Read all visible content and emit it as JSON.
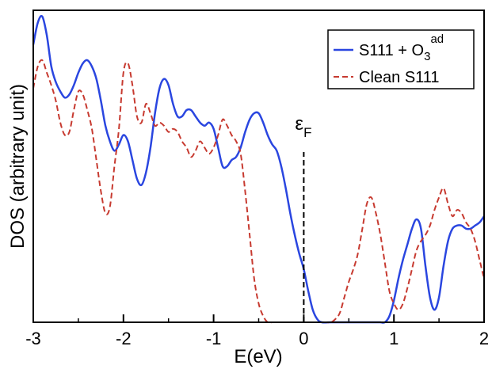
{
  "chart_data": {
    "type": "line",
    "title": "",
    "xlabel": "E(eV)",
    "ylabel": "DOS (arbitrary unit)",
    "xlim": [
      -3,
      2
    ],
    "ylim": [
      0,
      1
    ],
    "xticks": [
      "-3",
      "-2",
      "-1",
      "0",
      "1",
      "2"
    ],
    "grid": false,
    "legend_position": "top-right",
    "annotation": {
      "symbol": "ε",
      "subscript": "F",
      "x": 0
    },
    "series": [
      {
        "name_main": "S111 + O",
        "name_sub": "3",
        "name_sup": "ad",
        "color": "#2a46e0",
        "style": "solid",
        "x": [
          -3.0,
          -2.95,
          -2.9,
          -2.85,
          -2.8,
          -2.75,
          -2.7,
          -2.65,
          -2.6,
          -2.55,
          -2.5,
          -2.45,
          -2.4,
          -2.35,
          -2.3,
          -2.25,
          -2.2,
          -2.15,
          -2.1,
          -2.05,
          -2.0,
          -1.95,
          -1.9,
          -1.85,
          -1.8,
          -1.75,
          -1.7,
          -1.65,
          -1.6,
          -1.55,
          -1.5,
          -1.45,
          -1.4,
          -1.35,
          -1.3,
          -1.25,
          -1.2,
          -1.15,
          -1.1,
          -1.05,
          -1.0,
          -0.95,
          -0.9,
          -0.85,
          -0.8,
          -0.75,
          -0.7,
          -0.65,
          -0.6,
          -0.55,
          -0.5,
          -0.45,
          -0.4,
          -0.35,
          -0.3,
          -0.25,
          -0.2,
          -0.15,
          -0.1,
          -0.05,
          0.0,
          0.05,
          0.1,
          0.15,
          0.2,
          0.3,
          0.4,
          0.5,
          0.6,
          0.7,
          0.8,
          0.85,
          0.9,
          0.95,
          1.0,
          1.05,
          1.1,
          1.15,
          1.2,
          1.25,
          1.3,
          1.35,
          1.4,
          1.45,
          1.5,
          1.55,
          1.6,
          1.65,
          1.7,
          1.75,
          1.8,
          1.85,
          1.9,
          1.95,
          2.0
        ],
        "values": [
          0.89,
          0.96,
          0.98,
          0.92,
          0.82,
          0.77,
          0.74,
          0.72,
          0.73,
          0.76,
          0.8,
          0.83,
          0.84,
          0.82,
          0.78,
          0.71,
          0.63,
          0.58,
          0.55,
          0.57,
          0.6,
          0.58,
          0.52,
          0.46,
          0.44,
          0.48,
          0.56,
          0.67,
          0.75,
          0.78,
          0.76,
          0.7,
          0.66,
          0.66,
          0.68,
          0.68,
          0.66,
          0.64,
          0.63,
          0.64,
          0.62,
          0.56,
          0.5,
          0.5,
          0.52,
          0.53,
          0.56,
          0.61,
          0.65,
          0.67,
          0.67,
          0.64,
          0.6,
          0.57,
          0.55,
          0.5,
          0.43,
          0.35,
          0.28,
          0.22,
          0.17,
          0.1,
          0.04,
          0.01,
          0.0,
          0.0,
          0.0,
          0.0,
          0.0,
          0.0,
          0.0,
          0.0,
          0.0,
          0.02,
          0.07,
          0.14,
          0.2,
          0.25,
          0.3,
          0.33,
          0.3,
          0.18,
          0.08,
          0.04,
          0.08,
          0.18,
          0.26,
          0.3,
          0.31,
          0.31,
          0.3,
          0.3,
          0.31,
          0.32,
          0.34
        ]
      },
      {
        "name": "Clean S111",
        "color": "#c73a30",
        "style": "dashed",
        "x": [
          -3.0,
          -2.95,
          -2.9,
          -2.85,
          -2.8,
          -2.75,
          -2.7,
          -2.65,
          -2.6,
          -2.55,
          -2.5,
          -2.45,
          -2.4,
          -2.35,
          -2.3,
          -2.25,
          -2.2,
          -2.15,
          -2.1,
          -2.05,
          -2.0,
          -1.95,
          -1.9,
          -1.85,
          -1.8,
          -1.75,
          -1.7,
          -1.65,
          -1.6,
          -1.55,
          -1.5,
          -1.45,
          -1.4,
          -1.35,
          -1.3,
          -1.25,
          -1.2,
          -1.15,
          -1.1,
          -1.05,
          -1.0,
          -0.95,
          -0.9,
          -0.85,
          -0.8,
          -0.75,
          -0.7,
          -0.65,
          -0.6,
          -0.55,
          -0.5,
          -0.45,
          -0.4,
          -0.35,
          -0.3,
          -0.25,
          -0.2,
          -0.1,
          0.0,
          0.1,
          0.2,
          0.25,
          0.3,
          0.35,
          0.4,
          0.45,
          0.5,
          0.55,
          0.6,
          0.65,
          0.7,
          0.75,
          0.8,
          0.85,
          0.9,
          0.95,
          1.0,
          1.05,
          1.1,
          1.15,
          1.2,
          1.25,
          1.3,
          1.35,
          1.4,
          1.45,
          1.5,
          1.55,
          1.6,
          1.65,
          1.7,
          1.75,
          1.8,
          1.85,
          1.9,
          1.95,
          2.0
        ],
        "values": [
          0.75,
          0.82,
          0.84,
          0.8,
          0.76,
          0.71,
          0.64,
          0.6,
          0.61,
          0.68,
          0.74,
          0.73,
          0.68,
          0.62,
          0.52,
          0.42,
          0.35,
          0.37,
          0.5,
          0.62,
          0.8,
          0.83,
          0.76,
          0.66,
          0.64,
          0.7,
          0.67,
          0.63,
          0.64,
          0.63,
          0.61,
          0.62,
          0.61,
          0.58,
          0.56,
          0.53,
          0.55,
          0.58,
          0.56,
          0.54,
          0.56,
          0.6,
          0.65,
          0.63,
          0.6,
          0.58,
          0.54,
          0.42,
          0.28,
          0.14,
          0.06,
          0.02,
          0.0,
          0.0,
          0.0,
          0.0,
          0.0,
          0.0,
          0.0,
          0.0,
          0.0,
          0.0,
          0.0,
          0.01,
          0.03,
          0.08,
          0.13,
          0.17,
          0.22,
          0.3,
          0.38,
          0.4,
          0.35,
          0.28,
          0.19,
          0.1,
          0.06,
          0.04,
          0.06,
          0.11,
          0.17,
          0.23,
          0.26,
          0.28,
          0.31,
          0.36,
          0.4,
          0.43,
          0.38,
          0.34,
          0.36,
          0.35,
          0.32,
          0.3,
          0.26,
          0.2,
          0.14
        ]
      }
    ]
  }
}
